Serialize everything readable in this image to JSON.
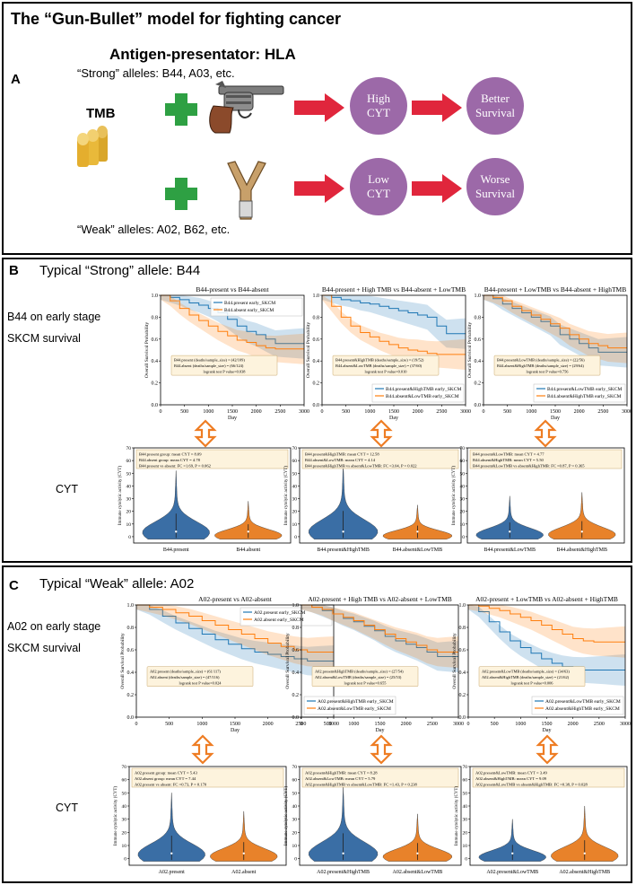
{
  "figure": {
    "title": "The “Gun-Bullet” model for fighting cancer",
    "panelA": {
      "letter": "A",
      "hla": "Antigen-presentator: HLA",
      "strong_label": "“Strong”  alleles: B44, A03, etc.",
      "weak_label": "“Weak”  alleles: A02, B62, etc.",
      "tmb": "TMB",
      "strong_cyt": [
        "High",
        "CYT"
      ],
      "strong_outcome": [
        "Better",
        "Survival"
      ],
      "weak_cyt": [
        "Low",
        "CYT"
      ],
      "weak_outcome": [
        "Worse",
        "Survival"
      ],
      "colors": {
        "circle": "#9c69a8",
        "arrow": "#e0263c",
        "plus": "#2ea043",
        "bullet": "#e9b93a"
      }
    },
    "panelB": {
      "letter": "B",
      "heading": "Typical “Strong” allele: B44",
      "survival_label": [
        "B44 on early stage",
        "SKCM survival"
      ],
      "cyt_label": "CYT"
    },
    "panelC": {
      "letter": "C",
      "heading": "Typical “Weak” allele: A02",
      "survival_label": [
        "A02 on early stage",
        "SKCM survival"
      ],
      "cyt_label": "CYT"
    }
  },
  "chart_data": [
    {
      "type": "line",
      "panel": "B",
      "title": "B44-present vs B44-absent",
      "xlabel": "Day",
      "ylabel": "Overall Survival Probability",
      "xlim": [
        0,
        3000
      ],
      "ylim": [
        0,
        1.0
      ],
      "xticks": [
        0,
        500,
        1000,
        1500,
        2000,
        2500,
        3000
      ],
      "yticks": [
        0.0,
        0.2,
        0.4,
        0.6,
        0.8,
        1.0
      ],
      "legend": "top-right",
      "series": [
        {
          "name": "B44.present early_SKCM",
          "color": "#1f77b4",
          "x": [
            0,
            200,
            400,
            600,
            800,
            1000,
            1200,
            1400,
            1600,
            1800,
            2000,
            2200,
            2400,
            2600,
            2800,
            3000
          ],
          "y": [
            1.0,
            0.98,
            0.96,
            0.93,
            0.91,
            0.88,
            0.84,
            0.78,
            0.72,
            0.67,
            0.64,
            0.6,
            0.56,
            0.56,
            0.56,
            0.56
          ]
        },
        {
          "name": "B44.absent early_SKCM",
          "color": "#ff7f0e",
          "x": [
            0,
            200,
            400,
            600,
            800,
            1000,
            1200,
            1400,
            1600,
            1800,
            2000,
            2200,
            2400,
            2600,
            2800,
            3000
          ],
          "y": [
            1.0,
            0.95,
            0.88,
            0.82,
            0.77,
            0.72,
            0.67,
            0.63,
            0.59,
            0.57,
            0.54,
            0.52,
            0.51,
            0.51,
            0.51,
            0.51
          ]
        }
      ],
      "annotation": [
        "B44.present (deaths/sample_size) = (42/109)",
        "B44.absent (deaths/sample_size) = (66/124)",
        "logrank test P value=0.038"
      ]
    },
    {
      "type": "line",
      "panel": "B",
      "title": "B44-present + High TMB  vs B44-absent + LowTMB",
      "xlabel": "Day",
      "ylabel": "Overall Survival Probability",
      "xlim": [
        0,
        3000
      ],
      "ylim": [
        0,
        1.0
      ],
      "xticks": [
        0,
        500,
        1000,
        1500,
        2000,
        2500,
        3000
      ],
      "yticks": [
        0.0,
        0.2,
        0.4,
        0.6,
        0.8,
        1.0
      ],
      "legend": "bottom-right",
      "series": [
        {
          "name": "B44.present&HighTMB early_SKCM",
          "color": "#1f77b4",
          "x": [
            0,
            200,
            400,
            600,
            800,
            1000,
            1200,
            1400,
            1600,
            1800,
            2000,
            2200,
            2400,
            2600,
            2800,
            3000
          ],
          "y": [
            1.0,
            0.98,
            0.96,
            0.95,
            0.93,
            0.92,
            0.9,
            0.88,
            0.86,
            0.84,
            0.82,
            0.8,
            0.72,
            0.65,
            0.65,
            0.65
          ]
        },
        {
          "name": "B44.absent&LowTMB early_SKCM",
          "color": "#ff7f0e",
          "x": [
            0,
            200,
            400,
            600,
            800,
            1000,
            1200,
            1400,
            1600,
            1800,
            2000,
            2200,
            2400,
            2600,
            2800,
            3000
          ],
          "y": [
            1.0,
            0.9,
            0.8,
            0.72,
            0.66,
            0.62,
            0.58,
            0.55,
            0.52,
            0.5,
            0.49,
            0.47,
            0.46,
            0.46,
            0.46,
            0.46
          ]
        }
      ],
      "annotation": [
        "B44.present&HighTMB (deaths/sample_size) = (19/52)",
        "B44.absent&LowTMB (deaths/sample_size) = (37/60)",
        "logrank test P value=0.010"
      ]
    },
    {
      "type": "line",
      "panel": "B",
      "title": "B44-present + LowTMB  vs B44-absent + HighTMB",
      "xlabel": "Day",
      "ylabel": "Overall Survival Probability",
      "xlim": [
        0,
        3000
      ],
      "ylim": [
        0,
        1.0
      ],
      "xticks": [
        0,
        500,
        1000,
        1500,
        2000,
        2500,
        3000
      ],
      "yticks": [
        0.0,
        0.2,
        0.4,
        0.6,
        0.8,
        1.0
      ],
      "legend": "bottom-right",
      "series": [
        {
          "name": "B44.present&LowTMB early_SKCM",
          "color": "#1f77b4",
          "x": [
            0,
            200,
            400,
            600,
            800,
            1000,
            1200,
            1400,
            1600,
            1800,
            2000,
            2200,
            2400,
            2600,
            2800,
            3000
          ],
          "y": [
            1.0,
            0.97,
            0.92,
            0.88,
            0.84,
            0.8,
            0.76,
            0.72,
            0.64,
            0.6,
            0.56,
            0.52,
            0.48,
            0.48,
            0.48,
            0.48
          ]
        },
        {
          "name": "B44.absent&HighTMB early_SKCM",
          "color": "#ff7f0e",
          "x": [
            0,
            200,
            400,
            600,
            800,
            1000,
            1200,
            1400,
            1600,
            1800,
            2000,
            2200,
            2400,
            2600,
            2800,
            3000
          ],
          "y": [
            1.0,
            0.98,
            0.95,
            0.9,
            0.86,
            0.82,
            0.78,
            0.74,
            0.7,
            0.64,
            0.6,
            0.56,
            0.54,
            0.52,
            0.52,
            0.52
          ]
        }
      ],
      "annotation": [
        "B44.present&LowTMB (deaths/sample_size) = (22/56)",
        "B44.absent&HighTMB (deaths/sample_size) = (29/64)",
        "logrank test P value=0.756"
      ]
    },
    {
      "type": "violin",
      "panel": "B",
      "ylabel": "Immune cytolytic activity (CYT)",
      "ylim": [
        -5,
        70
      ],
      "yticks": [
        0,
        10,
        20,
        30,
        40,
        50,
        60,
        70
      ],
      "categories": [
        "B44.present",
        "B44.absent"
      ],
      "peaks": [
        52,
        28
      ],
      "annotation": [
        "B44.present group: mean CYT = 8.09",
        "B44.absent group:  mean CYT = 4.78",
        "B44.present vs absent: FC =1.69, P = 0.062"
      ]
    },
    {
      "type": "violin",
      "panel": "B",
      "ylabel": "Immune cytolytic activity (CYT)",
      "ylim": [
        -5,
        70
      ],
      "yticks": [
        0,
        10,
        20,
        30,
        40,
        50,
        60,
        70
      ],
      "categories": [
        "B44.present&HighTMB",
        "B44.absent&LowTMB"
      ],
      "peaks": [
        58,
        25
      ],
      "annotation": [
        "B44.present&HighTMB: mean CYT = 12.58",
        "B44.absent&LowTMB:  mean CYT = 4.14",
        "B44.present&HighTMB vs absent&LowTMB: FC =3.04, P = 0.022"
      ]
    },
    {
      "type": "violin",
      "panel": "B",
      "ylabel": "Immune cytolytic activity (CYT)",
      "ylim": [
        -5,
        70
      ],
      "yticks": [
        0,
        10,
        20,
        30,
        40,
        50,
        60,
        70
      ],
      "categories": [
        "B44.present&LowTMB",
        "B44.absent&HighTMB"
      ],
      "peaks": [
        32,
        35
      ],
      "annotation": [
        "B44.present&LowTMB: mean CYT = 4.77",
        "B44.absent&HighTMB: mean CYT = 5.50",
        "B44.present&LowTMB vs absent&HighTMB: FC =0.87, P = 0.365"
      ]
    },
    {
      "type": "line",
      "panel": "C",
      "title": "A02-present vs A02-absent",
      "xlabel": "Day",
      "ylabel": "Overall Survival Probability",
      "xlim": [
        0,
        3000
      ],
      "ylim": [
        0,
        1.0
      ],
      "xticks": [
        0,
        500,
        1000,
        1500,
        2000,
        2500,
        3000
      ],
      "yticks": [
        0.0,
        0.2,
        0.4,
        0.6,
        0.8,
        1.0
      ],
      "legend": "top-right",
      "series": [
        {
          "name": "A02.present early_SKCM",
          "color": "#1f77b4",
          "x": [
            0,
            200,
            400,
            600,
            800,
            1000,
            1200,
            1400,
            1600,
            1800,
            2000,
            2200,
            2400,
            2600,
            2800,
            3000
          ],
          "y": [
            1.0,
            0.96,
            0.9,
            0.84,
            0.79,
            0.74,
            0.69,
            0.65,
            0.61,
            0.58,
            0.56,
            0.54,
            0.52,
            0.5,
            0.5,
            0.5
          ]
        },
        {
          "name": "A02.absent early_SKCM",
          "color": "#ff7f0e",
          "x": [
            0,
            200,
            400,
            600,
            800,
            1000,
            1200,
            1400,
            1600,
            1800,
            2000,
            2200,
            2400,
            2600,
            2800,
            3000
          ],
          "y": [
            1.0,
            0.98,
            0.96,
            0.93,
            0.9,
            0.86,
            0.82,
            0.78,
            0.74,
            0.7,
            0.66,
            0.63,
            0.6,
            0.58,
            0.58,
            0.58
          ]
        }
      ],
      "annotation": [
        "A02.present (deaths/sample_size) = (61/117)",
        "A02.absent (deaths/sample_size) = (47/116)",
        "logrank test P value=0.024"
      ]
    },
    {
      "type": "line",
      "panel": "C",
      "title": "A02-present + High TMB  vs A02-absent + LowTMB",
      "xlabel": "Day",
      "ylabel": "Overall Survival Probability",
      "xlim": [
        0,
        3000
      ],
      "ylim": [
        0,
        1.0
      ],
      "xticks": [
        0,
        500,
        1000,
        1500,
        2000,
        2500,
        3000
      ],
      "yticks": [
        0.0,
        0.2,
        0.4,
        0.6,
        0.8,
        1.0
      ],
      "legend": "bottom-left",
      "series": [
        {
          "name": "A02.present&HighTMB early_SKCM",
          "color": "#1f77b4",
          "x": [
            0,
            200,
            400,
            600,
            800,
            1000,
            1200,
            1400,
            1600,
            1800,
            2000,
            2200,
            2400,
            2600,
            2800,
            3000
          ],
          "y": [
            1.0,
            0.98,
            0.95,
            0.92,
            0.88,
            0.85,
            0.81,
            0.77,
            0.72,
            0.68,
            0.65,
            0.62,
            0.58,
            0.54,
            0.54,
            0.54
          ]
        },
        {
          "name": "A02.absent&LowTMB early_SKCM",
          "color": "#ff7f0e",
          "x": [
            0,
            200,
            400,
            600,
            800,
            1000,
            1200,
            1400,
            1600,
            1800,
            2000,
            2200,
            2400,
            2600,
            2800,
            3000
          ],
          "y": [
            1.0,
            0.98,
            0.96,
            0.92,
            0.89,
            0.86,
            0.82,
            0.78,
            0.74,
            0.7,
            0.67,
            0.64,
            0.6,
            0.58,
            0.58,
            0.58
          ]
        }
      ],
      "annotation": [
        "A02.present&HighTMB (deaths/sample_size) = (27/54)",
        "A02.absent&LowTMB (deaths/sample_size) = (25/53)",
        "logrank test P value=0.655"
      ]
    },
    {
      "type": "line",
      "panel": "C",
      "title": "A02-present + LowTMB  vs A02-absent + HighTMB",
      "xlabel": "Day",
      "ylabel": "Overall Survival Probability",
      "xlim": [
        0,
        3000
      ],
      "ylim": [
        0,
        1.0
      ],
      "xticks": [
        0,
        500,
        1000,
        1500,
        2000,
        2500,
        3000
      ],
      "yticks": [
        0.0,
        0.2,
        0.4,
        0.6,
        0.8,
        1.0
      ],
      "legend": "bottom-right",
      "series": [
        {
          "name": "A02.present&LowTMB early_SKCM",
          "color": "#1f77b4",
          "x": [
            0,
            200,
            400,
            600,
            800,
            1000,
            1200,
            1400,
            1600,
            1800,
            2000,
            2200,
            2400,
            2600,
            2800,
            3000
          ],
          "y": [
            1.0,
            0.94,
            0.85,
            0.76,
            0.68,
            0.62,
            0.57,
            0.52,
            0.48,
            0.45,
            0.43,
            0.42,
            0.42,
            0.42,
            0.42,
            0.42
          ]
        },
        {
          "name": "A02.absent&HighTMB early_SKCM",
          "color": "#ff7f0e",
          "x": [
            0,
            200,
            400,
            600,
            800,
            1000,
            1200,
            1400,
            1600,
            1800,
            2000,
            2200,
            2400,
            2600,
            2800,
            3000
          ],
          "y": [
            1.0,
            0.99,
            0.97,
            0.95,
            0.92,
            0.89,
            0.86,
            0.82,
            0.78,
            0.74,
            0.7,
            0.68,
            0.67,
            0.67,
            0.67,
            0.67
          ]
        }
      ],
      "annotation": [
        "A02.present&LowTMB (deaths/sample_size) = (34/63)",
        "A02.absent&HighTMB (deaths/sample_size) = (21/62)",
        "logrank test P value=0.006"
      ]
    },
    {
      "type": "violin",
      "panel": "C",
      "ylabel": "Immune cytolytic activity (CYT)",
      "ylim": [
        -5,
        70
      ],
      "yticks": [
        0,
        10,
        20,
        30,
        40,
        50,
        60,
        70
      ],
      "categories": [
        "A02.present",
        "A02.absent"
      ],
      "peaks": [
        50,
        36
      ],
      "annotation": [
        "A02.present group: mean CYT = 5.43",
        "A02.absent group:  mean CYT = 7.44",
        "A02.present vs absent: FC =0.73, P = 0.170"
      ]
    },
    {
      "type": "violin",
      "panel": "C",
      "ylabel": "Immune cytolytic activity (CYT)",
      "ylim": [
        -5,
        70
      ],
      "yticks": [
        0,
        10,
        20,
        30,
        40,
        50,
        60,
        70
      ],
      "categories": [
        "A02.present&HighTMB",
        "A02.absent&LowTMB"
      ],
      "peaks": [
        55,
        34
      ],
      "annotation": [
        "A02.present&HighTMB: mean CYT = 8.28",
        "A02.absent&LowTMB:  mean CYT = 5.79",
        "A02.present&HighTMB vs absent&LowTMB: FC =1.43, P = 0.238"
      ]
    },
    {
      "type": "violin",
      "panel": "C",
      "ylabel": "Immune cytolytic activity (CYT)",
      "ylim": [
        -5,
        70
      ],
      "yticks": [
        0,
        10,
        20,
        30,
        40,
        50,
        60,
        70
      ],
      "categories": [
        "A02.present&LowTMB",
        "A02.absent&HighTMB"
      ],
      "peaks": [
        30,
        40
      ],
      "annotation": [
        "A02.present&LowTMB: mean CYT = 3.49",
        "A02.absent&HighTMB: mean CYT = 9.09",
        "A02.present&LowTMB vs absent&HighTMB: FC =0.38, P = 0.028"
      ]
    }
  ]
}
